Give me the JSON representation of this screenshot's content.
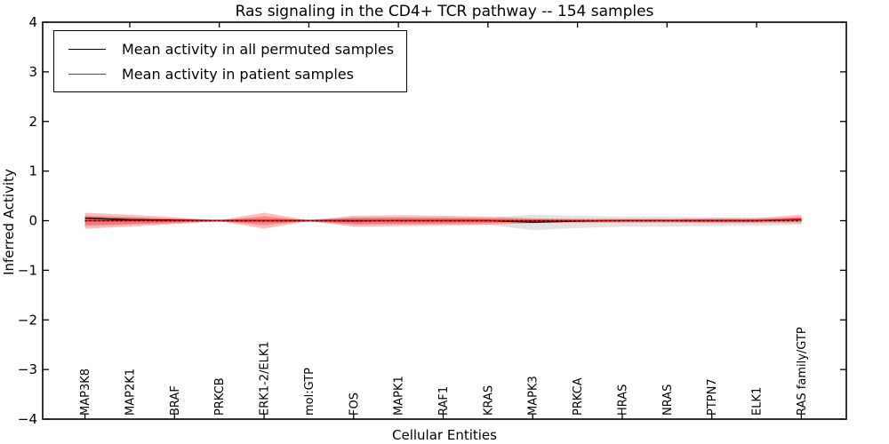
{
  "figure": {
    "title": "Ras signaling in the CD4+ TCR pathway -- 154 samples",
    "xlabel": "Cellular Entities",
    "ylabel": "Inferred Activity"
  },
  "legend": {
    "items": [
      {
        "label": "Mean activity in all permuted samples",
        "color": "#000000"
      },
      {
        "label": "Mean activity in patient samples",
        "color": "#ff0000"
      }
    ],
    "position": "upper left"
  },
  "colors": {
    "frame": "#000000",
    "background": "#ffffff",
    "permuted_line": "#000000",
    "patient_line": "#ff0000",
    "patient_band": "#ff0000",
    "permuted_band": "#000000",
    "zero_line": "#000000"
  },
  "chart_data": {
    "type": "line",
    "title": "Ras signaling in the CD4+ TCR pathway -- 154 samples",
    "xlabel": "Cellular Entities",
    "ylabel": "Inferred Activity",
    "ylim": [
      -4,
      4
    ],
    "yticks": [
      -4,
      -3,
      -2,
      -1,
      0,
      1,
      2,
      3,
      4
    ],
    "grid": false,
    "legend_position": "upper left",
    "xticklabel_rotation": 90,
    "categories": [
      "MAP3K8",
      "MAP2K1",
      "BRAF",
      "PRKCB",
      "ERK1-2/ELK1",
      "mol:GTP",
      "FOS",
      "MAPK1",
      "RAF1",
      "KRAS",
      "MAPK3",
      "PRKCA",
      "HRAS",
      "NRAS",
      "PTPN7",
      "ELK1",
      "RAS family/GTP"
    ],
    "series": [
      {
        "name": "Mean activity in all permuted samples",
        "color": "#000000",
        "style": "solid",
        "values": [
          0.05,
          0.02,
          0.01,
          0.0,
          0.0,
          0.0,
          0.0,
          0.0,
          0.0,
          0.0,
          -0.03,
          -0.01,
          0.0,
          0.0,
          0.0,
          0.0,
          0.02
        ]
      },
      {
        "name": "Mean activity in patient samples",
        "color": "#ff0000",
        "style": "solid",
        "values": [
          0.0,
          0.0,
          0.0,
          0.0,
          0.0,
          0.0,
          -0.01,
          0.0,
          0.0,
          0.0,
          0.0,
          0.0,
          0.0,
          0.0,
          0.0,
          0.0,
          0.03
        ]
      }
    ],
    "zero_reference_line": {
      "y": 0,
      "style": "dotted",
      "color": "#000000"
    },
    "bands": [
      {
        "name": "permuted-samples-spread",
        "color": "#000000",
        "opacity": 0.11,
        "upper": [
          0.1,
          0.07,
          0.04,
          0.02,
          0.05,
          0.02,
          0.06,
          0.07,
          0.06,
          0.06,
          0.12,
          0.1,
          0.08,
          0.08,
          0.07,
          0.06,
          0.05
        ],
        "lower": [
          -0.12,
          -0.08,
          -0.05,
          -0.02,
          -0.05,
          -0.02,
          -0.08,
          -0.08,
          -0.07,
          -0.08,
          -0.19,
          -0.15,
          -0.12,
          -0.12,
          -0.11,
          -0.1,
          -0.08
        ]
      },
      {
        "name": "patient-samples-spread-outer",
        "color": "#ff0000",
        "opacity": 0.26,
        "upper": [
          0.16,
          0.12,
          0.07,
          0.01,
          0.16,
          0.01,
          0.1,
          0.11,
          0.1,
          0.08,
          0.05,
          0.04,
          0.04,
          0.04,
          0.05,
          0.05,
          0.12
        ],
        "lower": [
          -0.16,
          -0.12,
          -0.07,
          -0.01,
          -0.16,
          -0.01,
          -0.12,
          -0.11,
          -0.1,
          -0.08,
          -0.05,
          -0.04,
          -0.04,
          -0.04,
          -0.05,
          -0.05,
          -0.05
        ]
      },
      {
        "name": "patient-samples-spread-inner",
        "color": "#ff0000",
        "opacity": 0.28,
        "upper": [
          0.09,
          0.07,
          0.04,
          0.005,
          0.09,
          0.005,
          0.06,
          0.06,
          0.055,
          0.045,
          0.03,
          0.02,
          0.02,
          0.02,
          0.03,
          0.03,
          0.07
        ],
        "lower": [
          -0.09,
          -0.07,
          -0.04,
          -0.005,
          -0.09,
          -0.005,
          -0.07,
          -0.06,
          -0.055,
          -0.045,
          -0.03,
          -0.02,
          -0.02,
          -0.02,
          -0.03,
          -0.03,
          -0.02
        ]
      }
    ]
  }
}
